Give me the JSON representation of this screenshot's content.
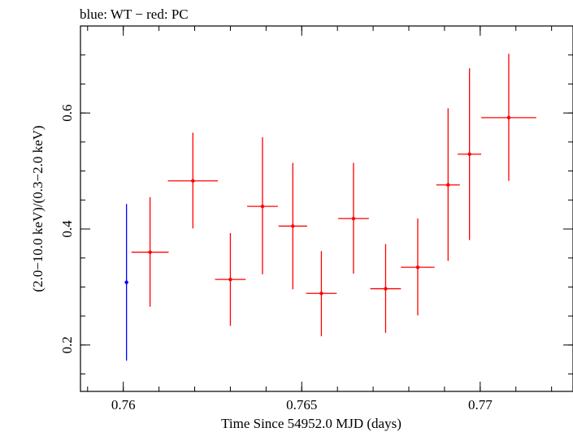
{
  "chart_data": {
    "type": "scatter",
    "title": "blue: WT − red: PC",
    "xlabel": "Time Since 54952.0 MJD (days)",
    "ylabel": "(2.0−10.0 keV)/(0.3−2.0 keV)",
    "xlim": [
      0.7588,
      0.7726
    ],
    "ylim": [
      0.12,
      0.75
    ],
    "x_major_ticks": [
      0.76,
      0.765,
      0.77
    ],
    "x_tick_labels": [
      "0.76",
      "0.765",
      "0.77"
    ],
    "x_minor_step": 0.001,
    "y_major_ticks": [
      0.2,
      0.4,
      0.6
    ],
    "y_tick_labels": [
      "0.2",
      "0.4",
      "0.6"
    ],
    "y_minor_step": 0.05,
    "grid": false,
    "series": [
      {
        "color": "#0000ff",
        "points": [
          {
            "x": 0.76009,
            "y": 0.308,
            "xerr": 3e-05,
            "ylo": 0.173,
            "yhi": 0.443
          }
        ]
      },
      {
        "color": "#ff0000",
        "points": [
          {
            "x": 0.76075,
            "y": 0.36,
            "xerr": 0.00052,
            "ylo": 0.266,
            "yhi": 0.455
          },
          {
            "x": 0.76195,
            "y": 0.483,
            "xerr": 0.0007,
            "ylo": 0.401,
            "yhi": 0.566
          },
          {
            "x": 0.763,
            "y": 0.313,
            "xerr": 0.00043,
            "ylo": 0.233,
            "yhi": 0.393
          },
          {
            "x": 0.7639,
            "y": 0.439,
            "xerr": 0.00043,
            "ylo": 0.322,
            "yhi": 0.558
          },
          {
            "x": 0.76475,
            "y": 0.405,
            "xerr": 0.0004,
            "ylo": 0.296,
            "yhi": 0.514
          },
          {
            "x": 0.76555,
            "y": 0.289,
            "xerr": 0.00043,
            "ylo": 0.215,
            "yhi": 0.362
          },
          {
            "x": 0.76645,
            "y": 0.418,
            "xerr": 0.00043,
            "ylo": 0.323,
            "yhi": 0.514
          },
          {
            "x": 0.76735,
            "y": 0.297,
            "xerr": 0.00043,
            "ylo": 0.221,
            "yhi": 0.374
          },
          {
            "x": 0.76825,
            "y": 0.334,
            "xerr": 0.00047,
            "ylo": 0.251,
            "yhi": 0.418
          },
          {
            "x": 0.7691,
            "y": 0.476,
            "xerr": 0.00033,
            "ylo": 0.345,
            "yhi": 0.608
          },
          {
            "x": 0.7697,
            "y": 0.529,
            "xerr": 0.00033,
            "ylo": 0.381,
            "yhi": 0.677
          },
          {
            "x": 0.7708,
            "y": 0.592,
            "xerr": 0.00077,
            "ylo": 0.483,
            "yhi": 0.702
          }
        ]
      }
    ]
  }
}
